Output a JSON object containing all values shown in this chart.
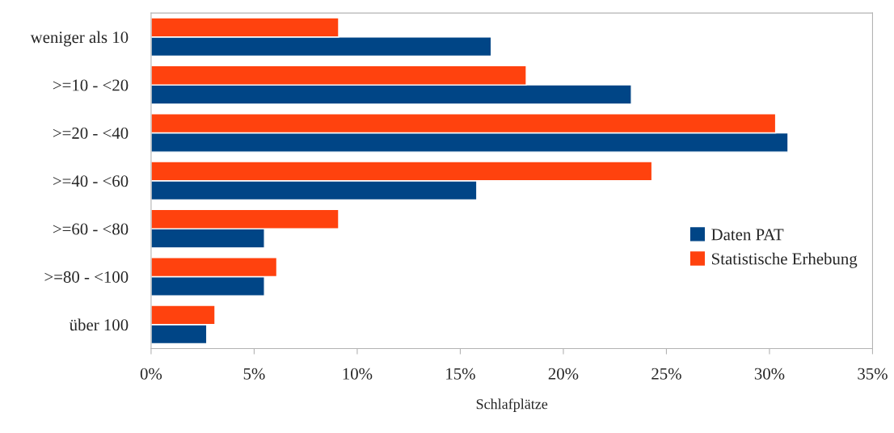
{
  "chart_data": {
    "type": "bar",
    "orientation": "horizontal",
    "xlabel": "Schlafplätze",
    "categories": [
      "weniger als 10",
      ">=10 - <20",
      ">=20 - <40",
      ">=40 - <60",
      ">=60 - <80",
      ">=80 - <100",
      "über 100"
    ],
    "series": [
      {
        "name": "Daten PAT",
        "color": "#004586",
        "values": [
          16.5,
          23.3,
          30.9,
          15.8,
          5.5,
          5.5,
          2.7
        ]
      },
      {
        "name": "Statistische Erhebung",
        "color": "#ff420e",
        "values": [
          9.1,
          18.2,
          30.3,
          24.3,
          9.1,
          6.1,
          3.1
        ]
      }
    ],
    "xlim": [
      0,
      35
    ],
    "xticks": [
      {
        "value": 0,
        "label": "0%"
      },
      {
        "value": 5,
        "label": "5%"
      },
      {
        "value": 10,
        "label": "10%"
      },
      {
        "value": 15,
        "label": "15%"
      },
      {
        "value": 20,
        "label": "20%"
      },
      {
        "value": 25,
        "label": "25%"
      },
      {
        "value": 30,
        "label": "30%"
      },
      {
        "value": 35,
        "label": "35%"
      }
    ],
    "grid": false,
    "legend": "right"
  }
}
